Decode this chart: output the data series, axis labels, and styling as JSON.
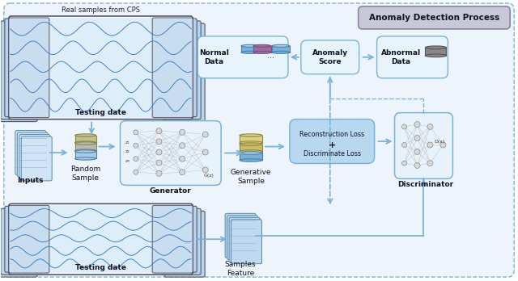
{
  "bg_color": "#eef4fb",
  "outer_bg": "#ffffff",
  "box_blue_light": "#cce0f0",
  "box_blue_border": "#7ab3d9",
  "arrow_color": "#7ab3d9",
  "dashed_arrow_color": "#7ab3d9",
  "title_box_bg": "#c8c8d8",
  "title_box_border": "#888899",
  "title_text": "Anomaly Detection Process",
  "label_top_ts": "Real samples from CPS",
  "label_inputs": "Inputs",
  "label_random": "Random\nSample",
  "label_generator": "Generator",
  "label_gen_sample": "Generative\nSample",
  "label_recon": "Reconstruction Loss\n+\nDiscriminate Loss",
  "label_discriminator": "Discriminator",
  "label_normal": "Normal\nData",
  "label_anomaly_score": "Anomaly\nScore",
  "label_abnormal": "Abnormal\nData",
  "label_bottom_testing": "Testing date",
  "label_samples_feature": "Samples\nFeature",
  "wave_color": "#3a7abf",
  "panel_border": "#555566",
  "neural_node_color": "#d8d8d8",
  "neural_node_border": "#888888"
}
